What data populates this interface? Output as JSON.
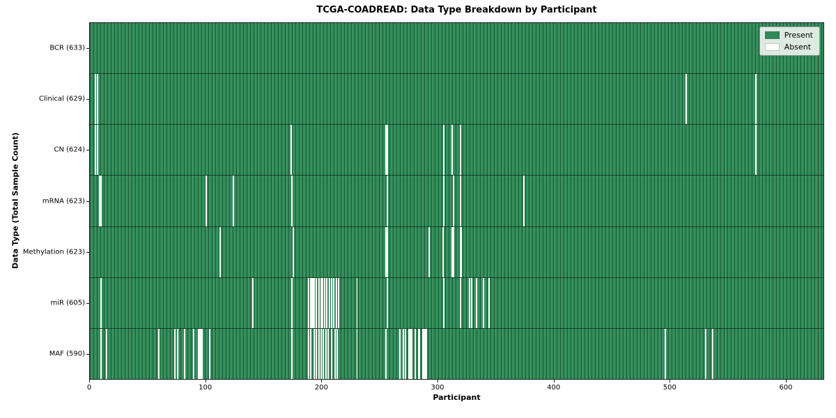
{
  "title": "TCGA-COADREAD: Data Type Breakdown by Participant",
  "xlabel": "Participant",
  "ylabel": "Data Type (Total Sample Count)",
  "legend": {
    "present_label": "Present",
    "absent_label": "Absent"
  },
  "colors": {
    "present": "#2e8b57",
    "absent": "#ffffff",
    "cell_edge": "#1f5e3c",
    "plot_border": "#1a1a1a"
  },
  "chart_data": {
    "type": "heatmap",
    "title": "TCGA-COADREAD: Data Type Breakdown by Participant",
    "xlabel": "Participant",
    "ylabel": "Data Type (Total Sample Count)",
    "xlim": [
      0,
      633
    ],
    "x_ticks": [
      0,
      100,
      200,
      300,
      400,
      500,
      600
    ],
    "n_participants": 633,
    "legend_entries": [
      "Present",
      "Absent"
    ],
    "legend_position": "upper right",
    "grid": false,
    "rows": [
      {
        "name": "bcr",
        "label": "BCR (633)",
        "total_present": 633,
        "absent_participants": []
      },
      {
        "name": "clinical",
        "label": "Clinical (629)",
        "total_present": 629,
        "absent_participants": [
          4,
          6,
          514,
          574
        ]
      },
      {
        "name": "cn",
        "label": "CN (624)",
        "total_present": 624,
        "absent_participants": [
          4,
          6,
          173,
          255,
          256,
          305,
          312,
          319,
          574
        ]
      },
      {
        "name": "mrna",
        "label": "mRNA (623)",
        "total_present": 623,
        "absent_participants": [
          8,
          9,
          100,
          123,
          174,
          256,
          305,
          313,
          319,
          374
        ]
      },
      {
        "name": "methylation",
        "label": "Methylation (623)",
        "total_present": 623,
        "absent_participants": [
          112,
          175,
          255,
          256,
          292,
          304,
          312,
          313,
          319,
          320
        ]
      },
      {
        "name": "mir",
        "label": "miR (605)",
        "total_present": 605,
        "absent_participants": [
          9,
          140,
          174,
          188,
          190,
          191,
          192,
          193,
          195,
          197,
          199,
          200,
          202,
          204,
          206,
          208,
          210,
          212,
          214,
          230,
          256,
          305,
          319,
          327,
          329,
          333,
          339,
          344
        ]
      },
      {
        "name": "maf",
        "label": "MAF (590)",
        "total_present": 590,
        "absent_participants": [
          9,
          14,
          59,
          73,
          75,
          81,
          89,
          93,
          94,
          95,
          96,
          103,
          174,
          188,
          190,
          193,
          195,
          197,
          199,
          201,
          203,
          205,
          208,
          211,
          213,
          230,
          255,
          267,
          270,
          272,
          275,
          276,
          277,
          280,
          283,
          284,
          287,
          288,
          289,
          290,
          496,
          531,
          537
        ]
      }
    ]
  }
}
